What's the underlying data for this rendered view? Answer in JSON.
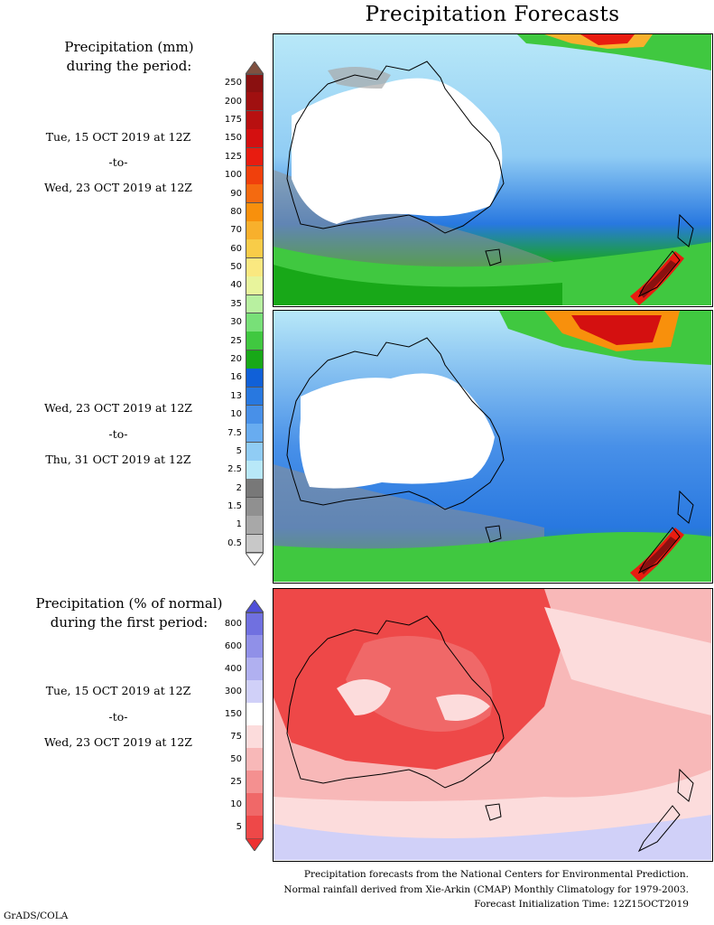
{
  "title": "Precipitation Forecasts",
  "legend_mm": {
    "header_line1": "Precipitation (mm)",
    "header_line2": "during the period:",
    "levels": [
      "250",
      "200",
      "175",
      "150",
      "125",
      "100",
      "90",
      "80",
      "70",
      "60",
      "50",
      "40",
      "35",
      "30",
      "25",
      "20",
      "16",
      "13",
      "10",
      "7.5",
      "5",
      "2.5",
      "2",
      "1.5",
      "1",
      "0.5"
    ],
    "colors": [
      "#8a1010",
      "#a01010",
      "#b81010",
      "#d41010",
      "#e81c10",
      "#f0400c",
      "#f46a10",
      "#f8900c",
      "#f8b02c",
      "#f8cc48",
      "#fae880",
      "#e8f49c",
      "#b8f0a0",
      "#78e078",
      "#40c840",
      "#18a818",
      "#1060d8",
      "#2878e0",
      "#4890e8",
      "#68acf0",
      "#90ccf4",
      "#b8e8f8",
      "#787878",
      "#909090",
      "#a8a8a8",
      "#c8c8c8"
    ],
    "cap_top": "#805040",
    "cap_bottom": "#ffffff"
  },
  "legend_pct": {
    "header_line1": "Precipitation (% of normal)",
    "header_line2": "during the first period:",
    "levels": [
      "800",
      "600",
      "400",
      "300",
      "150",
      "75",
      "50",
      "25",
      "10",
      "5"
    ],
    "colors": [
      "#7070e0",
      "#9090e8",
      "#b0b0f0",
      "#d0d0f8",
      "#ffffff",
      "#fcdcdc",
      "#f8b8b8",
      "#f49090",
      "#f06868",
      "#ee4848"
    ],
    "cap_top": "#5050d8",
    "cap_bottom": "#ee3030"
  },
  "periods": [
    {
      "start": "Tue, 15 OCT 2019 at 12Z",
      "sep": "-to-",
      "end": "Wed, 23 OCT 2019 at 12Z"
    },
    {
      "start": "Wed, 23 OCT 2019 at 12Z",
      "sep": "-to-",
      "end": "Thu, 31 OCT 2019 at 12Z"
    },
    {
      "start": "Tue, 15 OCT 2019 at 12Z",
      "sep": "-to-",
      "end": "Wed, 23 OCT 2019 at 12Z"
    }
  ],
  "credits": [
    "Precipitation forecasts from the National Centers for Environmental Prediction.",
    "Normal rainfall derived from Xie-Arkin (CMAP) Monthly Climatology for 1979-2003.",
    "Forecast Initialization Time: 12Z15OCT2019"
  ],
  "software": "GrADS/COLA"
}
